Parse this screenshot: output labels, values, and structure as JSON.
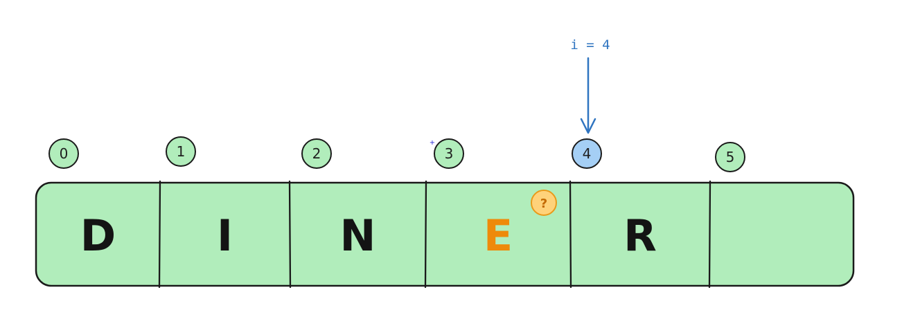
{
  "array": {
    "cells": [
      {
        "index": "0",
        "letter": "D",
        "highlight": false
      },
      {
        "index": "1",
        "letter": "I",
        "highlight": false
      },
      {
        "index": "2",
        "letter": "N",
        "highlight": false
      },
      {
        "index": "3",
        "letter": "E",
        "highlight": true,
        "badge": "?"
      },
      {
        "index": "4",
        "letter": "R",
        "highlight": false,
        "active": true
      },
      {
        "index": "5",
        "letter": "",
        "highlight": false
      }
    ]
  },
  "pointer": {
    "label": "i = 4",
    "target_index": 4
  },
  "colors": {
    "cell_fill": "#b1edbb",
    "index_fill_default": "#b1edbb",
    "index_fill_active": "#a5cff5",
    "highlight_letter": "#ee8a0a",
    "badge_fill": "#ffd27a",
    "pointer": "#2f74c0",
    "stroke": "#1a1a1a"
  }
}
